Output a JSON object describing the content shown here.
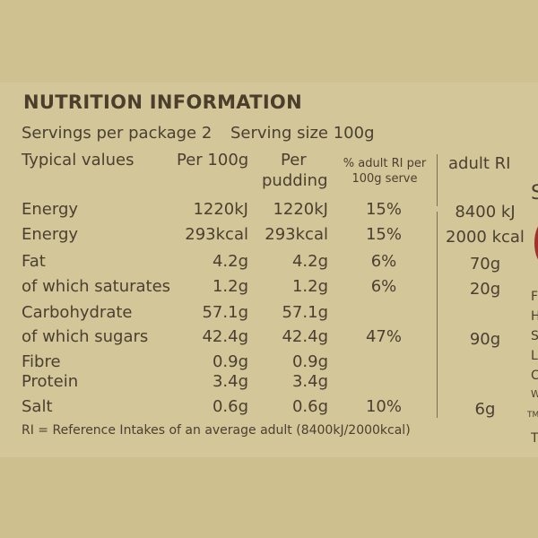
{
  "title": "NUTRITION INFORMATION",
  "servings_per_package": "Servings per package 2",
  "serving_size": "Serving size 100g",
  "headers": {
    "typical": "Typical values",
    "per100g": "Per 100g",
    "per_pudding_line1": "Per",
    "per_pudding_line2": "pudding",
    "ri_pct_line1": "% adult RI per",
    "ri_pct_line2": "100g serve",
    "adult_ri": "adult RI"
  },
  "rows": [
    {
      "label": "Energy",
      "per100g": "1220kJ",
      "per_pudding": "1220kJ",
      "ri_pct": "15%",
      "adult_ri": "8400 kJ"
    },
    {
      "label": "Energy",
      "per100g": "293kcal",
      "per_pudding": "293kcal",
      "ri_pct": "15%",
      "adult_ri": "2000 kcal"
    },
    {
      "label": "Fat",
      "per100g": "4.2g",
      "per_pudding": "4.2g",
      "ri_pct": "6%",
      "adult_ri": "70g"
    },
    {
      "label": "of which saturates",
      "per100g": "1.2g",
      "per_pudding": "1.2g",
      "ri_pct": "6%",
      "adult_ri": "20g"
    },
    {
      "label": "Carbohydrate",
      "per100g": "57.1g",
      "per_pudding": "57.1g",
      "ri_pct": "",
      "adult_ri": ""
    },
    {
      "label": "of which sugars",
      "per100g": "42.4g",
      "per_pudding": "42.4g",
      "ri_pct": "47%",
      "adult_ri": "90g"
    },
    {
      "label": "Fibre",
      "per100g": "0.9g",
      "per_pudding": "0.9g",
      "ri_pct": "",
      "adult_ri": ""
    },
    {
      "label": "Protein",
      "per100g": "3.4g",
      "per_pudding": "3.4g",
      "ri_pct": "",
      "adult_ri": ""
    },
    {
      "label": "Salt",
      "per100g": "0.6g",
      "per_pudding": "0.6g",
      "ri_pct": "10%",
      "adult_ri": "6g"
    }
  ],
  "footnote": "RI = Reference Intakes of an average adult (8400kJ/2000kcal)",
  "edge_fragments": [
    "S",
    "F",
    "H",
    "S",
    "L",
    "C",
    "W",
    "TM",
    "T"
  ],
  "colors": {
    "panel": "#d3c698",
    "text": "#4a3f30",
    "accent_red": "#a0322c"
  }
}
